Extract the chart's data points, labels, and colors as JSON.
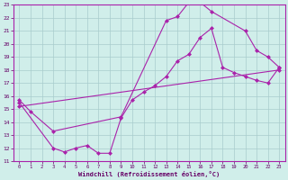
{
  "title": "",
  "xlabel": "Windchill (Refroidissement éolien,°C)",
  "ylabel": "",
  "xlim": [
    -0.5,
    23.5
  ],
  "ylim": [
    11,
    23
  ],
  "xticks": [
    0,
    1,
    2,
    3,
    4,
    5,
    6,
    7,
    8,
    9,
    10,
    11,
    12,
    13,
    14,
    15,
    16,
    17,
    18,
    19,
    20,
    21,
    22,
    23
  ],
  "yticks": [
    11,
    12,
    13,
    14,
    15,
    16,
    17,
    18,
    19,
    20,
    21,
    22,
    23
  ],
  "bg_color": "#d0eeea",
  "grid_color": "#a8cccc",
  "line_color": "#aa22aa",
  "line1_x": [
    0,
    1,
    3,
    9,
    13,
    14,
    15,
    16,
    17,
    20,
    21,
    22,
    23
  ],
  "line1_y": [
    15.7,
    14.8,
    13.3,
    14.4,
    21.8,
    22.1,
    23.2,
    23.2,
    22.5,
    21.0,
    19.5,
    19.0,
    18.2
  ],
  "line2_x": [
    0,
    23
  ],
  "line2_y": [
    15.2,
    18.0
  ],
  "line3_x": [
    0,
    3,
    4,
    5,
    6,
    7,
    8,
    9,
    10,
    11,
    12,
    13,
    14,
    15,
    16,
    17,
    18,
    19,
    20,
    21,
    22,
    23
  ],
  "line3_y": [
    15.5,
    12.0,
    11.7,
    12.0,
    12.2,
    11.6,
    11.6,
    14.3,
    15.7,
    16.3,
    16.8,
    17.5,
    18.7,
    19.2,
    20.5,
    21.2,
    18.2,
    17.8,
    17.5,
    17.2,
    17.0,
    18.2
  ]
}
